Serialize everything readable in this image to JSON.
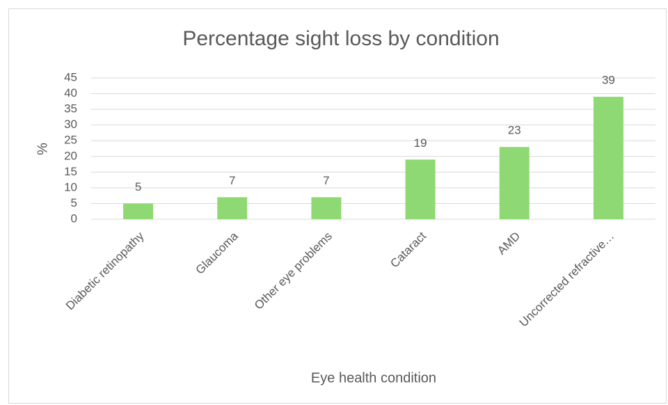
{
  "chart_data": {
    "type": "bar",
    "title": "Percentage sight loss by condition",
    "x_label": "Eye health condition",
    "y_label": "%",
    "categories": [
      "Diabetic retinopathy",
      "Glaucoma",
      "Other eye problems",
      "Cataract",
      "AMD",
      "Uncorrected refractive…"
    ],
    "values": [
      5,
      7,
      7,
      19,
      23,
      39
    ],
    "color": "#8ed973",
    "ylim": [
      0,
      45
    ],
    "yticks": [
      0,
      5,
      10,
      15,
      20,
      25,
      30,
      35,
      40,
      45
    ],
    "grid": true
  }
}
